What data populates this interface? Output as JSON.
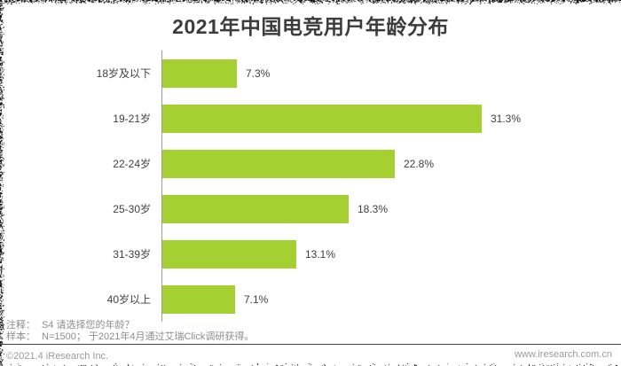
{
  "title": "2021年中国电竞用户年龄分布",
  "colors": {
    "bar": "#a5d032",
    "axis": "#9b9b9b",
    "title_text": "#3c3c3c",
    "label_text": "#3f3f3f",
    "note_text": "#8e8e8e",
    "footer_text": "#9a9a9a",
    "divider": "#454545"
  },
  "chart_data": {
    "type": "bar",
    "orientation": "horizontal",
    "title": "2021年中国电竞用户年龄分布",
    "categories": [
      "18岁及以下",
      "19-21岁",
      "22-24岁",
      "25-30岁",
      "31-39岁",
      "40岁以上"
    ],
    "values": [
      7.3,
      31.3,
      22.8,
      18.3,
      13.1,
      7.1
    ],
    "value_labels": [
      "7.3%",
      "31.3%",
      "22.8%",
      "18.3%",
      "13.1%",
      "7.1%"
    ],
    "unit": "%",
    "xlim": [
      0,
      35
    ],
    "grid": false,
    "legend": "none"
  },
  "footnotes": {
    "note_label": "注释：",
    "note_text": "S4 请选择您的年龄？",
    "sample_label": "样本：",
    "sample_text": "N=1500； 于2021年4月通过艾瑞Click调研获得。",
    "copyright": "©2021.4 iResearch Inc.",
    "website": "www.iresearch.com.cn"
  }
}
